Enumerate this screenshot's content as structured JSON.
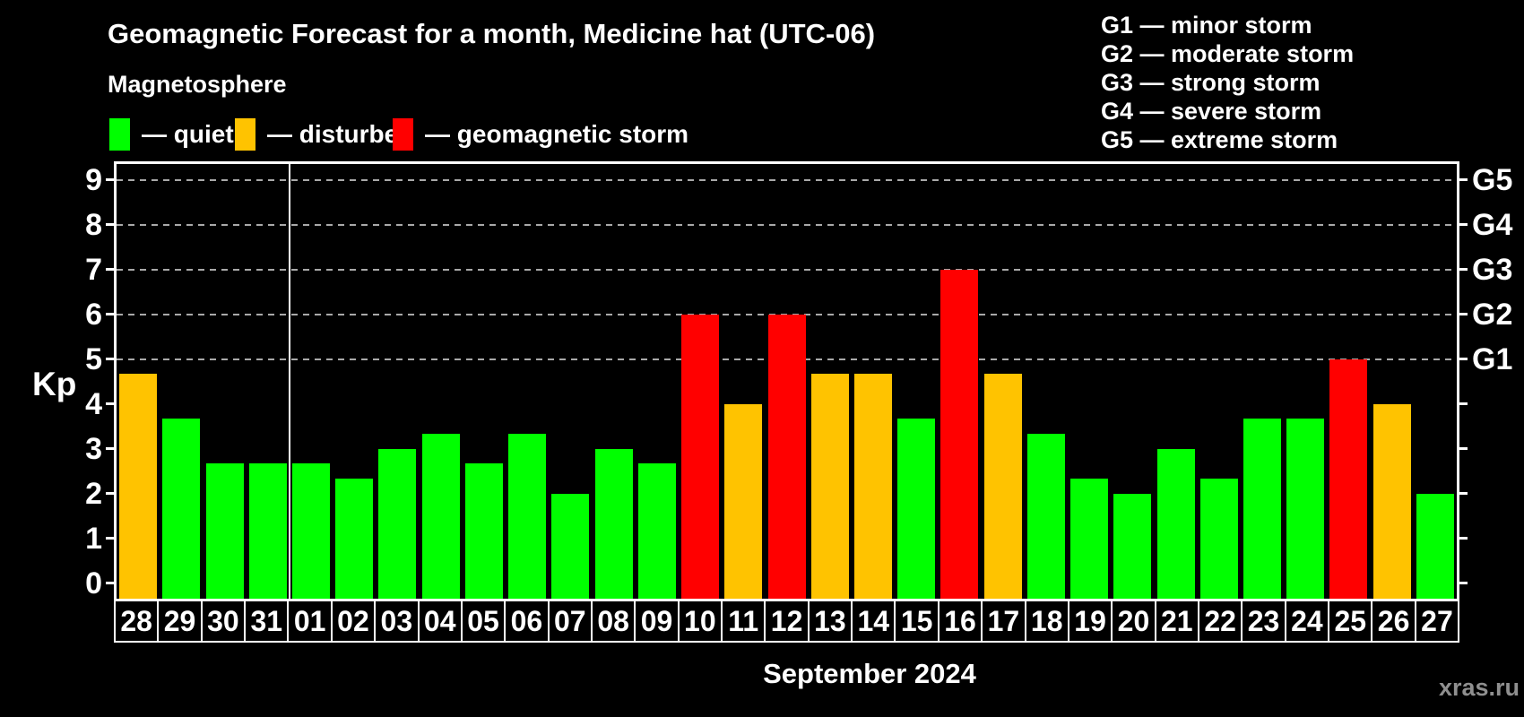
{
  "header": {
    "title": "Geomagnetic Forecast for a month, Medicine hat (UTC-06)",
    "subtitle": "Magnetosphere",
    "watermark": "xras.ru"
  },
  "legend": {
    "items": [
      {
        "label": "— quiet",
        "status": "quiet"
      },
      {
        "label": "— disturbed",
        "status": "disturbed"
      },
      {
        "label": "— geomagnetic storm",
        "status": "storm"
      }
    ]
  },
  "g_legend": {
    "items": [
      "G1 — minor storm",
      "G2 — moderate storm",
      "G3 — strong storm",
      "G4 — severe storm",
      "G5 — extreme storm"
    ]
  },
  "colors": {
    "quiet": "#00ff00",
    "disturbed": "#ffc300",
    "storm": "#ff0000",
    "gridline": "#a9a9a9",
    "axis": "#ffffff",
    "watermark": "#8f8f8f"
  },
  "chart_data": {
    "type": "bar",
    "title": "Geomagnetic Forecast for a month, Medicine hat (UTC-06)",
    "xlabel": "September 2024",
    "ylabel": "Kp",
    "ylim": [
      0,
      9
    ],
    "grid": "dashed horizontal at Kp 5-9 only",
    "legend_position": "top",
    "kp_ticks": [
      0,
      1,
      2,
      3,
      4,
      5,
      6,
      7,
      8,
      9
    ],
    "gridlines_kp": [
      5,
      6,
      7,
      8,
      9
    ],
    "right_axis_labels": [
      {
        "label": "G1",
        "kp": 5
      },
      {
        "label": "G2",
        "kp": 6
      },
      {
        "label": "G3",
        "kp": 7
      },
      {
        "label": "G4",
        "kp": 8
      },
      {
        "label": "G5",
        "kp": 9
      }
    ],
    "month_divider_after_day": "31",
    "bars": [
      {
        "day": "28",
        "kp": 4.67,
        "status": "disturbed"
      },
      {
        "day": "29",
        "kp": 3.67,
        "status": "quiet"
      },
      {
        "day": "30",
        "kp": 2.67,
        "status": "quiet"
      },
      {
        "day": "31",
        "kp": 2.67,
        "status": "quiet"
      },
      {
        "day": "01",
        "kp": 2.67,
        "status": "quiet"
      },
      {
        "day": "02",
        "kp": 2.33,
        "status": "quiet"
      },
      {
        "day": "03",
        "kp": 3.0,
        "status": "quiet"
      },
      {
        "day": "04",
        "kp": 3.33,
        "status": "quiet"
      },
      {
        "day": "05",
        "kp": 2.67,
        "status": "quiet"
      },
      {
        "day": "06",
        "kp": 3.33,
        "status": "quiet"
      },
      {
        "day": "07",
        "kp": 2.0,
        "status": "quiet"
      },
      {
        "day": "08",
        "kp": 3.0,
        "status": "quiet"
      },
      {
        "day": "09",
        "kp": 2.67,
        "status": "quiet"
      },
      {
        "day": "10",
        "kp": 6.0,
        "status": "storm"
      },
      {
        "day": "11",
        "kp": 4.0,
        "status": "disturbed"
      },
      {
        "day": "12",
        "kp": 6.0,
        "status": "storm"
      },
      {
        "day": "13",
        "kp": 4.67,
        "status": "disturbed"
      },
      {
        "day": "14",
        "kp": 4.67,
        "status": "disturbed"
      },
      {
        "day": "15",
        "kp": 3.67,
        "status": "quiet"
      },
      {
        "day": "16",
        "kp": 7.0,
        "status": "storm"
      },
      {
        "day": "17",
        "kp": 4.67,
        "status": "disturbed"
      },
      {
        "day": "18",
        "kp": 3.33,
        "status": "quiet"
      },
      {
        "day": "19",
        "kp": 2.33,
        "status": "quiet"
      },
      {
        "day": "20",
        "kp": 2.0,
        "status": "quiet"
      },
      {
        "day": "21",
        "kp": 3.0,
        "status": "quiet"
      },
      {
        "day": "22",
        "kp": 2.33,
        "status": "quiet"
      },
      {
        "day": "23",
        "kp": 3.67,
        "status": "quiet"
      },
      {
        "day": "24",
        "kp": 3.67,
        "status": "quiet"
      },
      {
        "day": "25",
        "kp": 5.0,
        "status": "storm"
      },
      {
        "day": "26",
        "kp": 4.0,
        "status": "disturbed"
      },
      {
        "day": "27",
        "kp": 2.0,
        "status": "quiet"
      }
    ]
  }
}
